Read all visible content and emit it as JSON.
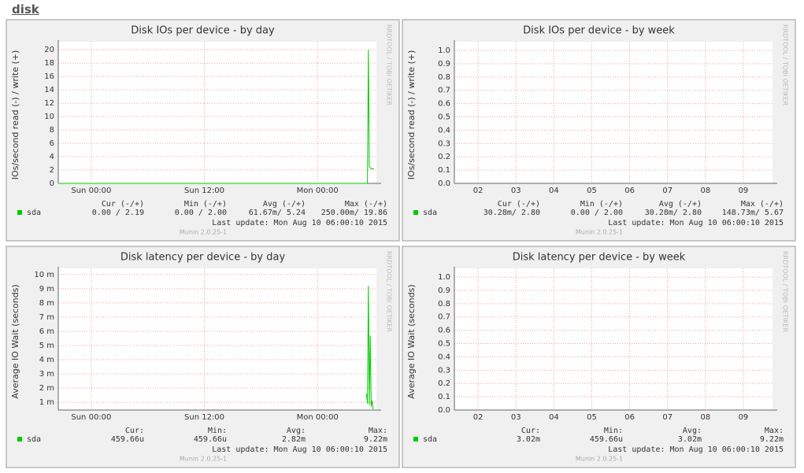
{
  "page_title": "disk",
  "chart_data": [
    {
      "type": "line",
      "title": "Disk IOs per device - by day",
      "y_label": "IOs/second read (-) / write (+)",
      "side_text": "RRDTOOL / TOBI OETIKER",
      "xlim": [
        -3.5,
        30.25
      ],
      "xticks": [
        {
          "value": 0,
          "label": "Sun 00:00"
        },
        {
          "value": 12,
          "label": "Sun 12:00"
        },
        {
          "value": 24,
          "label": "Mon 00:00"
        }
      ],
      "ylim": [
        0,
        20.5
      ],
      "yticks": [
        0,
        2,
        4,
        6,
        8,
        10,
        12,
        14,
        16,
        18,
        20
      ],
      "grid": true,
      "stat_headers": [
        "Cur (-/+)",
        "Min (-/+)",
        "Avg (-/+)",
        "Max (-/+)"
      ],
      "series": [
        {
          "name": "sda",
          "color": "#00cc00",
          "x": [
            -3.5,
            29.3,
            29.4,
            29.5,
            29.7,
            30.0
          ],
          "values": [
            0,
            0,
            20,
            2.5,
            2.2,
            2.19
          ],
          "stats": [
            "0.00 / 2.19",
            "0.00 / 2.00",
            "61.67m/ 5.24",
            "250.00m/ 19.86"
          ]
        }
      ],
      "last_update": "Last update: Mon Aug 10 06:00:10 2015",
      "version": "Munin 2.0.25-1"
    },
    {
      "type": "line",
      "title": "Disk IOs per device - by week",
      "y_label": "IOs/second read (-) / write (+)",
      "side_text": "RRDTOOL / TOBI OETIKER",
      "xlim": [
        1.375,
        9.77
      ],
      "xticks": [
        {
          "value": 2,
          "label": "02"
        },
        {
          "value": 3,
          "label": "03"
        },
        {
          "value": 4,
          "label": "04"
        },
        {
          "value": 5,
          "label": "05"
        },
        {
          "value": 6,
          "label": "06"
        },
        {
          "value": 7,
          "label": "07"
        },
        {
          "value": 8,
          "label": "08"
        },
        {
          "value": 9,
          "label": "09"
        }
      ],
      "ylim": [
        0,
        1.03
      ],
      "yticks": [
        {
          "value": 0,
          "label": "0.0"
        },
        0.1,
        0.2,
        0.3,
        0.4,
        0.5,
        0.6,
        0.7,
        0.8,
        0.9,
        {
          "value": 1,
          "label": "1.0"
        }
      ],
      "grid": true,
      "stat_headers": [
        "Cur (-/+)",
        "Min (-/+)",
        "Avg (-/+)",
        "Max (-/+)"
      ],
      "series": [
        {
          "name": "sda",
          "color": "#00cc00",
          "x": [],
          "values": [],
          "stats": [
            "30.28m/ 2.80",
            "0.00 / 2.00",
            "30.28m/ 2.80",
            "148.73m/ 5.67"
          ]
        }
      ],
      "last_update": "Last update: Mon Aug 10 06:00:10 2015",
      "version": "Munin 2.0.25-1"
    },
    {
      "type": "line",
      "title": "Disk latency per device - by day",
      "y_label": "Average IO Wait (seconds)",
      "side_text": "RRDTOOL / TOBI OETIKER",
      "xlim": [
        -3.5,
        30.25
      ],
      "xticks": [
        {
          "value": 0,
          "label": "Sun 00:00"
        },
        {
          "value": 12,
          "label": "Sun 12:00"
        },
        {
          "value": 24,
          "label": "Mon 00:00"
        }
      ],
      "ylim": [
        0.00045,
        0.0101
      ],
      "yticks": [
        {
          "value": 0.001,
          "label": "1 m"
        },
        {
          "value": 0.002,
          "label": "2 m"
        },
        {
          "value": 0.003,
          "label": "3 m"
        },
        {
          "value": 0.004,
          "label": "4 m"
        },
        {
          "value": 0.005,
          "label": "5 m"
        },
        {
          "value": 0.006,
          "label": "6 m"
        },
        {
          "value": 0.007,
          "label": "7 m"
        },
        {
          "value": 0.008,
          "label": "8 m"
        },
        {
          "value": 0.009,
          "label": "9 m"
        },
        {
          "value": 0.01,
          "label": "10 m"
        }
      ],
      "grid": true,
      "stat_headers": [
        "Cur:",
        "Min:",
        "Avg:",
        "Max:"
      ],
      "series": [
        {
          "name": "sda",
          "color": "#00cc00",
          "x": [
            29.2,
            29.3,
            29.4,
            29.5,
            29.6,
            29.7,
            29.8,
            29.9
          ],
          "values": [
            0.0016,
            0.0009,
            0.0092,
            0.0008,
            0.0057,
            0.0007,
            0.0011,
            0.0005
          ],
          "stats": [
            "459.66u",
            "459.66u",
            "2.82m",
            "9.22m"
          ]
        }
      ],
      "last_update": "Last update: Mon Aug 10 06:00:10 2015",
      "version": "Munin 2.0.25-1"
    },
    {
      "type": "line",
      "title": "Disk latency per device - by week",
      "y_label": "Average IO Wait (seconds)",
      "side_text": "RRDTOOL / TOBI OETIKER",
      "xlim": [
        1.375,
        9.77
      ],
      "xticks": [
        {
          "value": 2,
          "label": "02"
        },
        {
          "value": 3,
          "label": "03"
        },
        {
          "value": 4,
          "label": "04"
        },
        {
          "value": 5,
          "label": "05"
        },
        {
          "value": 6,
          "label": "06"
        },
        {
          "value": 7,
          "label": "07"
        },
        {
          "value": 8,
          "label": "08"
        },
        {
          "value": 9,
          "label": "09"
        }
      ],
      "ylim": [
        0,
        1.03
      ],
      "yticks": [
        {
          "value": 0,
          "label": "0.0"
        },
        0.1,
        0.2,
        0.3,
        0.4,
        0.5,
        0.6,
        0.7,
        0.8,
        0.9,
        {
          "value": 1,
          "label": "1.0"
        }
      ],
      "grid": true,
      "stat_headers": [
        "Cur:",
        "Min:",
        "Avg:",
        "Max:"
      ],
      "series": [
        {
          "name": "sda",
          "color": "#00cc00",
          "x": [],
          "values": [],
          "stats": [
            "3.02m",
            "459.66u",
            "3.02m",
            "9.22m"
          ]
        }
      ],
      "last_update": "Last update: Mon Aug 10 06:00:10 2015",
      "version": "Munin 2.0.25-1"
    }
  ]
}
